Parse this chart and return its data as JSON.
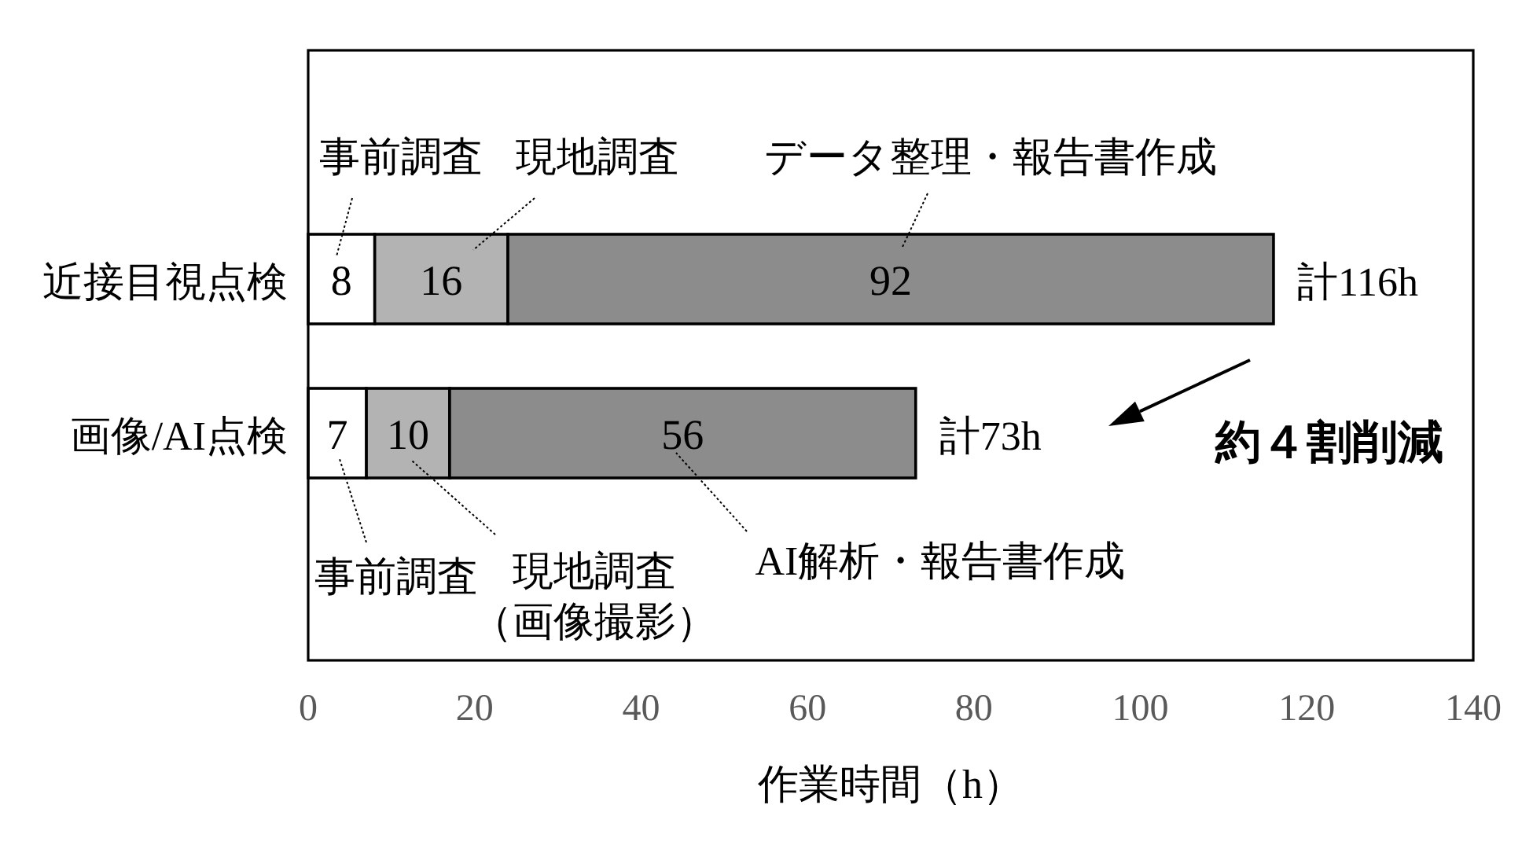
{
  "chart_data": {
    "type": "bar",
    "orientation": "horizontal",
    "stacked": true,
    "categories": [
      "近接目視点検",
      "画像/AI点検"
    ],
    "series": [
      {
        "color": "#ffffff",
        "values": [
          8,
          7
        ]
      },
      {
        "color": "#b3b3b3",
        "values": [
          16,
          10
        ]
      },
      {
        "color": "#8c8c8c",
        "values": [
          92,
          56
        ]
      }
    ],
    "data_labels": true,
    "totals": [
      "計116h",
      "計73h"
    ],
    "xlim": [
      0,
      140
    ],
    "xticks": [
      0,
      20,
      40,
      60,
      80,
      100,
      120,
      140
    ],
    "xlabel": "作業時間（h）",
    "annotations": [
      "事前調査",
      "現地調査",
      "データ整理・報告書作成",
      "事前調査",
      "現地調査（画像撮影）",
      "AI解析・報告書作成",
      "約４割削減"
    ]
  }
}
